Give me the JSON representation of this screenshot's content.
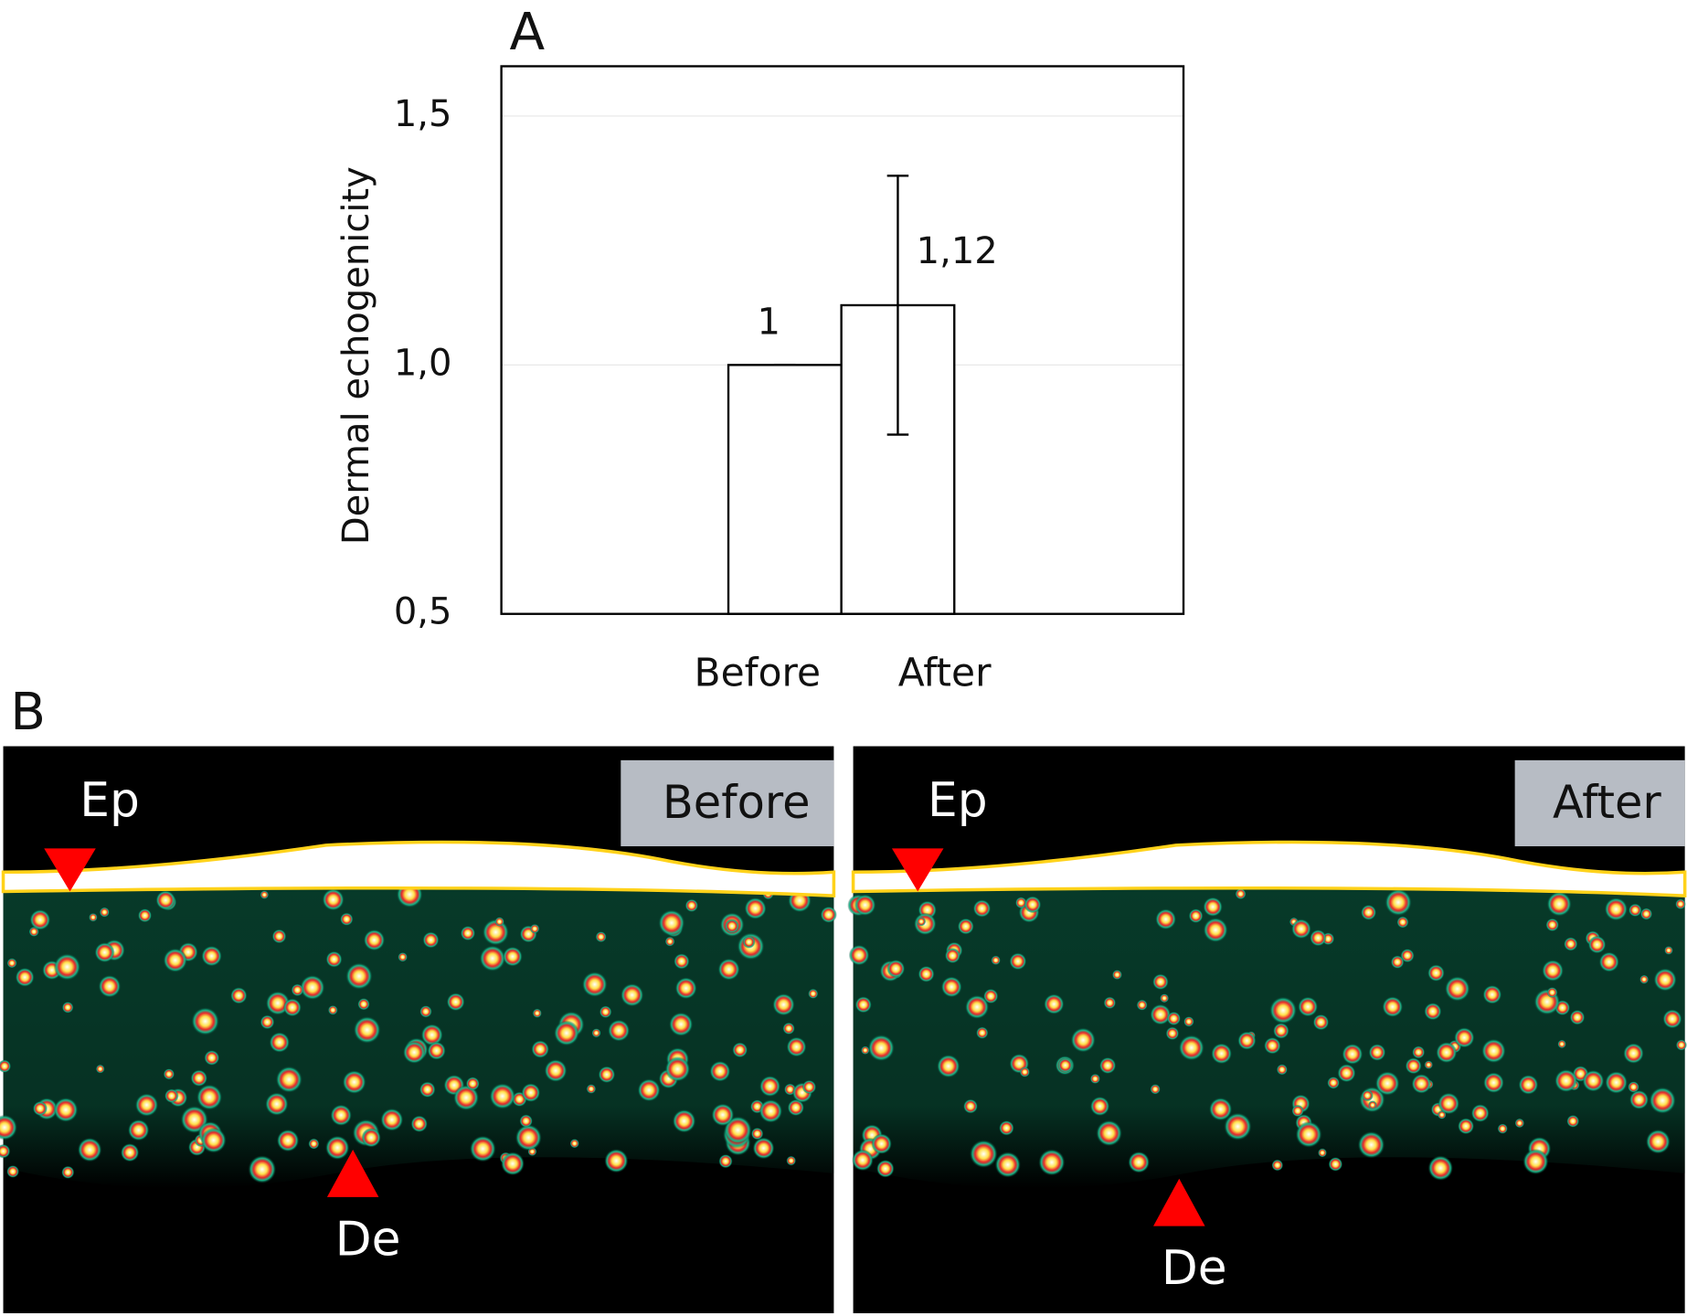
{
  "chart_data": {
    "type": "bar",
    "panel_label": "A",
    "ylabel": "Dermal echogenicity",
    "categories": [
      "Before",
      "After"
    ],
    "values": [
      1,
      1.12
    ],
    "value_labels": [
      "1",
      "1,12"
    ],
    "errors": [
      0,
      0.26
    ],
    "color": "#ffffff",
    "ylim": [
      0.5,
      1.6
    ],
    "yticks": [
      {
        "value": 0.5,
        "label": "0,5"
      },
      {
        "value": 1.0,
        "label": "1,0"
      },
      {
        "value": 1.5,
        "label": "1,5"
      }
    ],
    "grid": true
  },
  "panel_b": {
    "panel_label": "B",
    "images": [
      {
        "label": "Before",
        "epidermis_marker": "Ep",
        "dermis_marker": "De"
      },
      {
        "label": "After",
        "epidermis_marker": "Ep",
        "dermis_marker": "De"
      }
    ]
  }
}
